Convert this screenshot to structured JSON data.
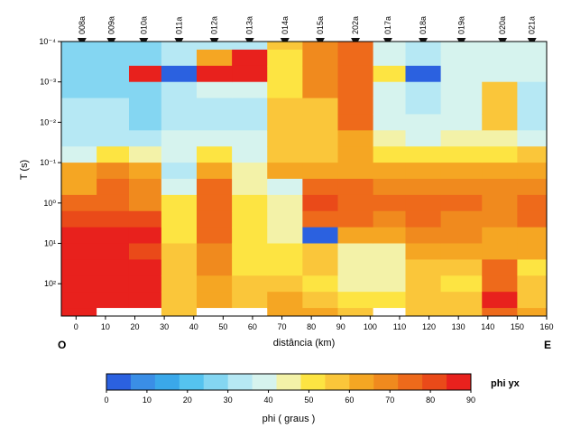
{
  "chart_data": {
    "type": "heatmap",
    "title": "",
    "xlabel": "distância (km)",
    "ylabel": "T (s)",
    "xlim": [
      -5,
      160
    ],
    "x_ticks": [
      "0",
      "10",
      "20",
      "30",
      "40",
      "50",
      "60",
      "70",
      "80",
      "90",
      "100",
      "110",
      "120",
      "130",
      "140",
      "150",
      "160"
    ],
    "y_ticks": [
      "10⁻⁴",
      "10⁻³",
      "10⁻²",
      "10⁻¹",
      "10⁰",
      "10¹",
      "10²"
    ],
    "y_tick_exponents": [
      -4,
      -3,
      -2,
      -1,
      0,
      1,
      2
    ],
    "ylim_log10": [
      -4,
      2.8
    ],
    "left_end_label": "O",
    "right_end_label": "E",
    "stations": [
      {
        "name": "008a",
        "x": 2
      },
      {
        "name": "009a",
        "x": 12
      },
      {
        "name": "010a",
        "x": 23
      },
      {
        "name": "011a",
        "x": 35
      },
      {
        "name": "012a",
        "x": 47
      },
      {
        "name": "013a",
        "x": 59
      },
      {
        "name": "014a",
        "x": 71
      },
      {
        "name": "015a",
        "x": 83
      },
      {
        "name": "202a",
        "x": 95
      },
      {
        "name": "017a",
        "x": 106
      },
      {
        "name": "018a",
        "x": 118
      },
      {
        "name": "019a",
        "x": 131
      },
      {
        "name": "020a",
        "x": 145
      },
      {
        "name": "021a",
        "x": 155
      }
    ],
    "colorbar": {
      "label": "phi ( graus )",
      "title": "phi yx",
      "min": 0,
      "max": 90,
      "tick_values": [
        0,
        10,
        20,
        30,
        40,
        50,
        60,
        70,
        80,
        90
      ],
      "colors": [
        "#2b61e0",
        "#3a8ee6",
        "#3aa8ea",
        "#55c3ef",
        "#84d6f2",
        "#b6e8f4",
        "#d6f3ee",
        "#f3f2a8",
        "#fde442",
        "#fac63a",
        "#f5a623",
        "#f08a1e",
        "#ee6a1b",
        "#ea4a19",
        "#e8211d"
      ]
    },
    "rows_log10": [
      -4.0,
      -3.6,
      -3.2,
      -2.8,
      -2.4,
      -2.0,
      -1.6,
      -1.2,
      -0.8,
      -0.4,
      0.0,
      0.4,
      0.8,
      1.2,
      1.6,
      2.0,
      2.4,
      2.8
    ],
    "columns": [
      {
        "x0": -5,
        "x1": 7,
        "values": [
          25,
          25,
          25,
          25,
          32,
          32,
          35,
          40,
          62,
          65,
          72,
          78,
          85,
          90,
          90,
          90,
          90,
          90
        ]
      },
      {
        "x0": 7,
        "x1": 18,
        "values": [
          25,
          25,
          25,
          25,
          32,
          32,
          35,
          48,
          68,
          72,
          75,
          80,
          85,
          90,
          90,
          90,
          90,
          null
        ]
      },
      {
        "x0": 18,
        "x1": 29,
        "values": [
          25,
          25,
          90,
          25,
          25,
          25,
          32,
          45,
          62,
          68,
          70,
          80,
          88,
          80,
          85,
          90,
          90,
          null
        ]
      },
      {
        "x0": 29,
        "x1": 41,
        "values": [
          35,
          35,
          5,
          35,
          35,
          35,
          40,
          40,
          35,
          40,
          48,
          48,
          48,
          55,
          55,
          55,
          58,
          55
        ]
      },
      {
        "x0": 41,
        "x1": 53,
        "values": [
          35,
          60,
          90,
          40,
          35,
          35,
          40,
          48,
          60,
          72,
          75,
          72,
          72,
          70,
          70,
          65,
          62,
          null
        ]
      },
      {
        "x0": 53,
        "x1": 65,
        "values": [
          35,
          90,
          90,
          40,
          35,
          35,
          38,
          40,
          42,
          42,
          50,
          52,
          50,
          48,
          50,
          58,
          58,
          null
        ]
      },
      {
        "x0": 65,
        "x1": 77,
        "values": [
          55,
          50,
          50,
          50,
          55,
          55,
          55,
          58,
          60,
          40,
          42,
          45,
          45,
          50,
          52,
          58,
          62,
          65
        ]
      },
      {
        "x0": 77,
        "x1": 89,
        "values": [
          70,
          70,
          70,
          70,
          58,
          55,
          55,
          58,
          60,
          72,
          78,
          72,
          0,
          55,
          55,
          52,
          55,
          60
        ]
      },
      {
        "x0": 89,
        "x1": 101,
        "values": [
          72,
          72,
          72,
          72,
          72,
          72,
          62,
          60,
          62,
          72,
          72,
          72,
          62,
          45,
          45,
          45,
          50,
          55
        ]
      },
      {
        "x0": 101,
        "x1": 112,
        "values": [
          40,
          40,
          50,
          40,
          40,
          40,
          45,
          50,
          62,
          70,
          72,
          70,
          65,
          45,
          45,
          45,
          48,
          null
        ]
      },
      {
        "x0": 112,
        "x1": 124,
        "values": [
          35,
          35,
          5,
          35,
          35,
          40,
          40,
          48,
          62,
          70,
          72,
          75,
          70,
          65,
          58,
          58,
          55,
          58
        ]
      },
      {
        "x0": 124,
        "x1": 138,
        "values": [
          40,
          40,
          38,
          38,
          40,
          40,
          45,
          52,
          62,
          70,
          75,
          70,
          68,
          65,
          55,
          48,
          55,
          58
        ]
      },
      {
        "x0": 138,
        "x1": 150,
        "values": [
          40,
          40,
          40,
          55,
          55,
          55,
          45,
          52,
          62,
          70,
          70,
          68,
          60,
          65,
          72,
          75,
          90,
          72
        ]
      },
      {
        "x0": 150,
        "x1": 160,
        "values": [
          40,
          40,
          38,
          35,
          35,
          35,
          40,
          55,
          62,
          70,
          72,
          72,
          65,
          60,
          52,
          55,
          58,
          60
        ]
      }
    ]
  }
}
